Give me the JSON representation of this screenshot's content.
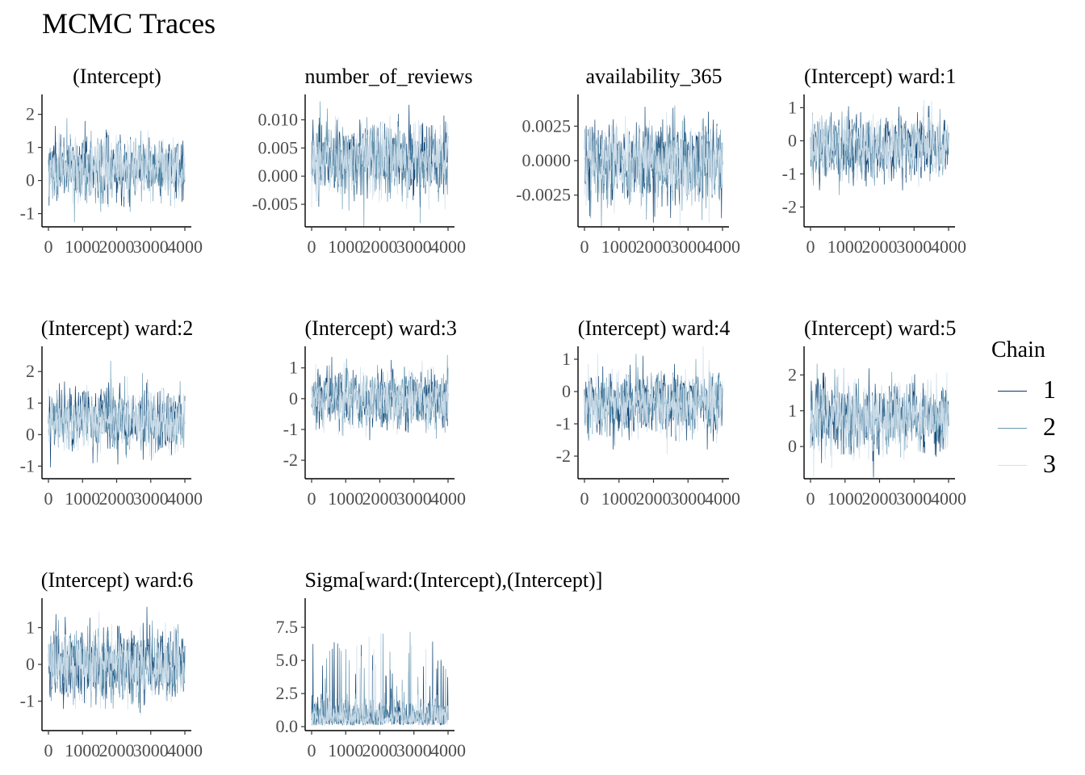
{
  "title": "MCMC Traces",
  "legend": {
    "title": "Chain",
    "items": [
      {
        "label": "1",
        "color": "#03396c"
      },
      {
        "label": "2",
        "color": "#6497b1"
      },
      {
        "label": "3",
        "color": "#d1e1ec"
      }
    ]
  },
  "chart_data": [
    {
      "type": "line",
      "title": "(Intercept)",
      "xlim": [
        0,
        4000
      ],
      "ylim": [
        -1.4,
        2.6
      ],
      "x_ticks": [
        0,
        1000,
        2000,
        3000,
        4000
      ],
      "y_ticks": [
        -1,
        0,
        1,
        2
      ],
      "y_tick_labels": [
        "-1",
        "0",
        "1",
        "2"
      ],
      "series": [
        {
          "name": "1",
          "mean": 0.4,
          "sd": 0.5
        },
        {
          "name": "2",
          "mean": 0.4,
          "sd": 0.5
        },
        {
          "name": "3",
          "mean": 0.4,
          "sd": 0.5
        }
      ]
    },
    {
      "type": "line",
      "title": "number_of_reviews",
      "xlim": [
        0,
        4000
      ],
      "ylim": [
        -0.009,
        0.0145
      ],
      "x_ticks": [
        0,
        1000,
        2000,
        3000,
        4000
      ],
      "y_ticks": [
        -0.005,
        0,
        0.005,
        0.01
      ],
      "y_tick_labels": [
        "-0.005",
        "0.000",
        "0.005",
        "0.010"
      ],
      "series": [
        {
          "name": "1",
          "mean": 0.003,
          "sd": 0.0033
        },
        {
          "name": "2",
          "mean": 0.003,
          "sd": 0.0033
        },
        {
          "name": "3",
          "mean": 0.003,
          "sd": 0.0033
        }
      ]
    },
    {
      "type": "line",
      "title": "availability_365",
      "xlim": [
        0,
        4000
      ],
      "ylim": [
        -0.0048,
        0.0048
      ],
      "x_ticks": [
        0,
        1000,
        2000,
        3000,
        4000
      ],
      "y_ticks": [
        -0.0025,
        0,
        0.0025
      ],
      "y_tick_labels": [
        "-0.0025",
        "0.0000",
        "0.0025"
      ],
      "series": [
        {
          "name": "1",
          "mean": -0.0002,
          "sd": 0.0015
        },
        {
          "name": "2",
          "mean": -0.0002,
          "sd": 0.0015
        },
        {
          "name": "3",
          "mean": -0.0002,
          "sd": 0.0015
        }
      ]
    },
    {
      "type": "line",
      "title": "(Intercept) ward:1",
      "xlim": [
        0,
        4000
      ],
      "ylim": [
        -2.6,
        1.4
      ],
      "x_ticks": [
        0,
        1000,
        2000,
        3000,
        4000
      ],
      "y_ticks": [
        -2,
        -1,
        0,
        1
      ],
      "y_tick_labels": [
        "-2",
        "-1",
        "0",
        "1"
      ],
      "series": [
        {
          "name": "1",
          "mean": -0.2,
          "sd": 0.5
        },
        {
          "name": "2",
          "mean": -0.2,
          "sd": 0.5
        },
        {
          "name": "3",
          "mean": -0.2,
          "sd": 0.5
        }
      ]
    },
    {
      "type": "line",
      "title": "(Intercept) ward:2",
      "xlim": [
        0,
        4000
      ],
      "ylim": [
        -1.4,
        2.8
      ],
      "x_ticks": [
        0,
        1000,
        2000,
        3000,
        4000
      ],
      "y_ticks": [
        -1,
        0,
        1,
        2
      ],
      "y_tick_labels": [
        "-1",
        "0",
        "1",
        "2"
      ],
      "series": [
        {
          "name": "1",
          "mean": 0.45,
          "sd": 0.5
        },
        {
          "name": "2",
          "mean": 0.45,
          "sd": 0.5
        },
        {
          "name": "3",
          "mean": 0.45,
          "sd": 0.5
        }
      ]
    },
    {
      "type": "line",
      "title": "(Intercept) ward:3",
      "xlim": [
        0,
        4000
      ],
      "ylim": [
        -2.6,
        1.7
      ],
      "x_ticks": [
        0,
        1000,
        2000,
        3000,
        4000
      ],
      "y_ticks": [
        -2,
        -1,
        0,
        1
      ],
      "y_tick_labels": [
        "-2",
        "-1",
        "0",
        "1"
      ],
      "series": [
        {
          "name": "1",
          "mean": 0.0,
          "sd": 0.5
        },
        {
          "name": "2",
          "mean": 0.0,
          "sd": 0.5
        },
        {
          "name": "3",
          "mean": 0.0,
          "sd": 0.5
        }
      ]
    },
    {
      "type": "line",
      "title": "(Intercept) ward:4",
      "xlim": [
        0,
        4000
      ],
      "ylim": [
        -2.7,
        1.4
      ],
      "x_ticks": [
        0,
        1000,
        2000,
        3000,
        4000
      ],
      "y_ticks": [
        -2,
        -1,
        0,
        1
      ],
      "y_tick_labels": [
        "-2",
        "-1",
        "0",
        "1"
      ],
      "series": [
        {
          "name": "1",
          "mean": -0.4,
          "sd": 0.5
        },
        {
          "name": "2",
          "mean": -0.4,
          "sd": 0.5
        },
        {
          "name": "3",
          "mean": -0.4,
          "sd": 0.5
        }
      ]
    },
    {
      "type": "line",
      "title": "(Intercept) ward:5",
      "xlim": [
        0,
        4000
      ],
      "ylim": [
        -0.9,
        2.8
      ],
      "x_ticks": [
        0,
        1000,
        2000,
        3000,
        4000
      ],
      "y_ticks": [
        0,
        1,
        2
      ],
      "y_tick_labels": [
        "0",
        "1",
        "2"
      ],
      "series": [
        {
          "name": "1",
          "mean": 0.8,
          "sd": 0.5
        },
        {
          "name": "2",
          "mean": 0.8,
          "sd": 0.5
        },
        {
          "name": "3",
          "mean": 0.8,
          "sd": 0.5
        }
      ]
    },
    {
      "type": "line",
      "title": "(Intercept) ward:6",
      "xlim": [
        0,
        4000
      ],
      "ylim": [
        -1.8,
        1.8
      ],
      "x_ticks": [
        0,
        1000,
        2000,
        3000,
        4000
      ],
      "y_ticks": [
        -1,
        0,
        1
      ],
      "y_tick_labels": [
        "-1",
        "0",
        "1"
      ],
      "series": [
        {
          "name": "1",
          "mean": 0.0,
          "sd": 0.5
        },
        {
          "name": "2",
          "mean": 0.0,
          "sd": 0.5
        },
        {
          "name": "3",
          "mean": 0.0,
          "sd": 0.5
        }
      ]
    },
    {
      "type": "line",
      "title": "Sigma[ward:(Intercept),(Intercept)]",
      "xlim": [
        0,
        4000
      ],
      "ylim": [
        -0.3,
        9.7
      ],
      "x_ticks": [
        0,
        1000,
        2000,
        3000,
        4000
      ],
      "y_ticks": [
        0,
        2.5,
        5,
        7.5
      ],
      "y_tick_labels": [
        "0.0",
        "2.5",
        "5.0",
        "7.5"
      ],
      "series": [
        {
          "name": "1",
          "mean": 0.8,
          "sd": 0.9,
          "skewed": true
        },
        {
          "name": "2",
          "mean": 0.8,
          "sd": 0.9,
          "skewed": true
        },
        {
          "name": "3",
          "mean": 0.8,
          "sd": 0.9,
          "skewed": true
        }
      ]
    }
  ]
}
